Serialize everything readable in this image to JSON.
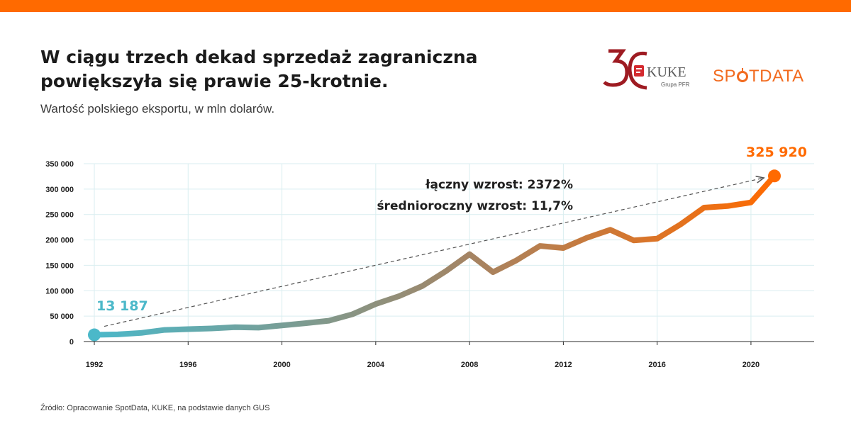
{
  "header": {
    "title": "W ciągu trzech dekad sprzedaż zagraniczna powiększyła się prawie 25-krotnie.",
    "subtitle": "Wartość polskiego eksportu, w mln dolarów.",
    "accent_color": "#ff6a00"
  },
  "logos": {
    "kuke_name": "KUKE",
    "kuke_sub": "Grupa PFR",
    "spotdata_pre": "SP",
    "spotdata_post": "TDATA",
    "kuke_color": "#9e1b22",
    "spotdata_color": "#f26b1f"
  },
  "footer": {
    "source": "Źródło: Opracowanie SpotData, KUKE, na podstawie danych GUS"
  },
  "chart_data": {
    "type": "line",
    "title": "W ciągu trzech dekad sprzedaż zagraniczna powiększyła się prawie 25-krotnie.",
    "subtitle": "Wartość polskiego eksportu, w mln dolarów.",
    "x": [
      1992,
      1993,
      1994,
      1995,
      1996,
      1997,
      1998,
      1999,
      2000,
      2001,
      2002,
      2003,
      2004,
      2005,
      2006,
      2007,
      2008,
      2009,
      2010,
      2011,
      2012,
      2013,
      2014,
      2015,
      2016,
      2017,
      2018,
      2019,
      2020,
      2021
    ],
    "series": [
      {
        "values": [
          13187,
          14100,
          17000,
          22900,
          24400,
          25800,
          28200,
          27400,
          31700,
          36100,
          41000,
          53600,
          73800,
          89400,
          109600,
          138800,
          171900,
          136600,
          159800,
          188100,
          184100,
          204100,
          219900,
          199100,
          202500,
          230600,
          263600,
          266600,
          273800,
          325920
        ]
      }
    ],
    "xlim": [
      1992,
      2021
    ],
    "ylim": [
      0,
      350000
    ],
    "xticks": [
      "1992",
      "1996",
      "2000",
      "2004",
      "2008",
      "2012",
      "2016",
      "2020"
    ],
    "yticks": [
      "0",
      "50 000",
      "100 000",
      "150 000",
      "200 000",
      "250 000",
      "300 000",
      "350 000"
    ],
    "grid": true,
    "start_label": "13 187",
    "end_label": "325 920",
    "start_color": "#4bb8c9",
    "end_color": "#ff6a00",
    "annotations": [
      "łączny wzrost: 2372%",
      "średnioroczny wzrost: 11,7%"
    ]
  }
}
